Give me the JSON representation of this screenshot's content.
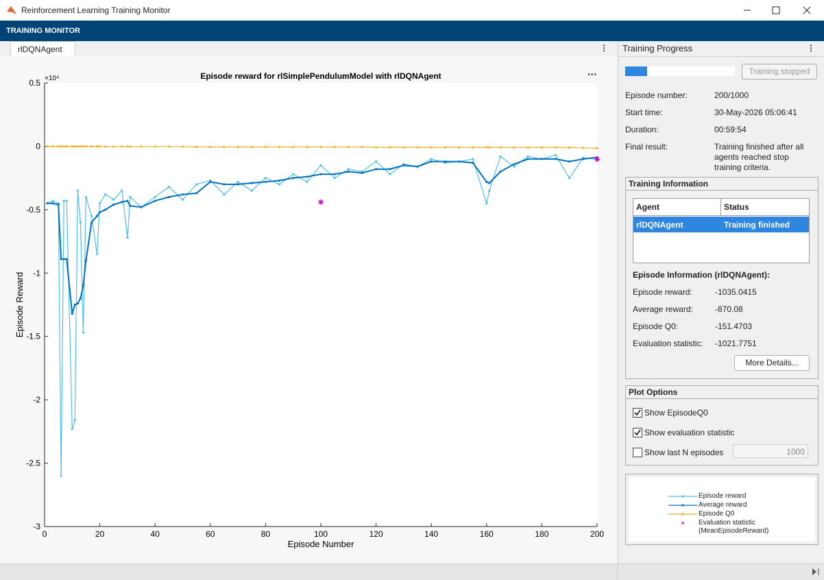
{
  "window": {
    "title": "Reinforcement Learning Training Monitor"
  },
  "toolstrip": {
    "title": "TRAINING MONITOR"
  },
  "tab": {
    "label": "rlDQNAgent"
  },
  "chart_data": {
    "type": "line",
    "title": "Episode reward for rlSimplePendulumModel with rlDQNAgent",
    "x_label": "Episode Number",
    "y_label": "Episode Reward",
    "y_exponent": "×10⁴",
    "x": [
      1,
      3,
      5,
      6,
      7,
      8,
      10,
      11,
      12,
      13,
      14,
      15,
      17,
      19,
      20,
      22,
      25,
      28,
      30,
      31,
      35,
      40,
      45,
      50,
      55,
      60,
      65,
      70,
      75,
      80,
      85,
      90,
      95,
      100,
      105,
      110,
      115,
      120,
      125,
      130,
      135,
      140,
      145,
      150,
      155,
      160,
      161,
      165,
      170,
      175,
      180,
      185,
      190,
      195,
      200
    ],
    "xlim": [
      0,
      200
    ],
    "xticks": [
      0,
      20,
      40,
      60,
      80,
      100,
      120,
      140,
      160,
      180,
      200
    ],
    "ylim": [
      -3,
      0.5
    ],
    "yticks": [
      0.5,
      0,
      -0.5,
      -1,
      -1.5,
      -2,
      -2.5,
      -3
    ],
    "grid": false,
    "series": [
      {
        "name": "Episode reward",
        "color": "#4dbeee",
        "marker": "dot",
        "values": [
          -0.45,
          -0.43,
          -0.45,
          -2.6,
          -0.43,
          -0.43,
          -2.23,
          -2.16,
          -0.35,
          -0.6,
          -1.47,
          -0.4,
          -0.55,
          -0.85,
          -0.45,
          -0.38,
          -0.42,
          -0.35,
          -0.72,
          -0.4,
          -0.48,
          -0.4,
          -0.32,
          -0.42,
          -0.3,
          -0.27,
          -0.38,
          -0.28,
          -0.35,
          -0.25,
          -0.3,
          -0.22,
          -0.28,
          -0.15,
          -0.25,
          -0.18,
          -0.2,
          -0.12,
          -0.22,
          -0.14,
          -0.16,
          -0.1,
          -0.13,
          -0.12,
          -0.1,
          -0.45,
          -0.35,
          -0.08,
          -0.16,
          -0.08,
          -0.1,
          -0.07,
          -0.25,
          -0.09,
          -0.1035
        ]
      },
      {
        "name": "Average reward",
        "color": "#0072bd",
        "marker": "dot",
        "values": [
          -0.45,
          -0.45,
          -0.46,
          -0.89,
          -0.89,
          -0.89,
          -1.32,
          -1.25,
          -1.24,
          -1.2,
          -1.1,
          -0.9,
          -0.6,
          -0.55,
          -0.52,
          -0.5,
          -0.46,
          -0.44,
          -0.43,
          -0.47,
          -0.48,
          -0.43,
          -0.4,
          -0.38,
          -0.37,
          -0.28,
          -0.3,
          -0.3,
          -0.29,
          -0.28,
          -0.27,
          -0.25,
          -0.24,
          -0.22,
          -0.22,
          -0.2,
          -0.21,
          -0.18,
          -0.18,
          -0.15,
          -0.16,
          -0.12,
          -0.12,
          -0.12,
          -0.13,
          -0.28,
          -0.29,
          -0.2,
          -0.14,
          -0.1,
          -0.1,
          -0.1,
          -0.12,
          -0.1,
          -0.087
        ]
      },
      {
        "name": "Episode Q0",
        "color": "#edb120",
        "marker": "dot",
        "values": [
          -0.001,
          -0.001,
          -0.001,
          -0.001,
          -0.001,
          -0.001,
          -0.001,
          -0.001,
          -0.001,
          -0.001,
          -0.001,
          -0.001,
          -0.001,
          -0.001,
          -0.001,
          -0.002,
          -0.002,
          -0.002,
          -0.002,
          -0.002,
          -0.002,
          -0.002,
          -0.002,
          -0.002,
          -0.005,
          -0.005,
          -0.005,
          -0.005,
          -0.005,
          -0.005,
          -0.005,
          -0.005,
          -0.005,
          -0.005,
          -0.005,
          -0.005,
          -0.005,
          -0.008,
          -0.008,
          -0.008,
          -0.008,
          -0.008,
          -0.008,
          -0.008,
          -0.008,
          -0.008,
          -0.008,
          -0.008,
          -0.009,
          -0.009,
          -0.009,
          -0.009,
          -0.01,
          -0.013,
          -0.0151
        ]
      },
      {
        "name": "Evaluation statistic (MeanEpisodeReward)",
        "color": "#c800c8",
        "marker": "asterisk",
        "x": [
          100,
          200
        ],
        "values": [
          -0.44,
          -0.1022
        ]
      }
    ]
  },
  "panel": {
    "title": "Training Progress",
    "progress": 20,
    "button": "Training stopped",
    "fields": [
      {
        "label": "Episode number:",
        "value": "200/1000"
      },
      {
        "label": "Start time:",
        "value": "30-May-2026 05:06:41"
      },
      {
        "label": "Duration:",
        "value": "00:59:54"
      },
      {
        "label": "Final result:",
        "value": "Training finished after all agents reached stop training criteria."
      }
    ]
  },
  "training_information": {
    "title": "Training Information",
    "columns": [
      "Agent",
      "Status"
    ],
    "rows": [
      [
        "rlDQNAgent",
        "Training finished"
      ]
    ],
    "episode_info_title": "Episode Information (rlDQNAgent):",
    "fields": [
      {
        "label": "Episode reward:",
        "value": "-1035.0415"
      },
      {
        "label": "Average reward:",
        "value": "-870.08"
      },
      {
        "label": "Episode Q0:",
        "value": "-151.4703"
      },
      {
        "label": "Evaluation statistic:",
        "value": "-1021.7751"
      }
    ],
    "button": "More Details..."
  },
  "plot_options": {
    "title": "Plot Options",
    "options": [
      {
        "label": "Show EpisodeQ0",
        "checked": true
      },
      {
        "label": "Show evaluation statistic",
        "checked": true
      },
      {
        "label": "Show last N episodes",
        "checked": false
      }
    ],
    "last_n": "1000"
  }
}
